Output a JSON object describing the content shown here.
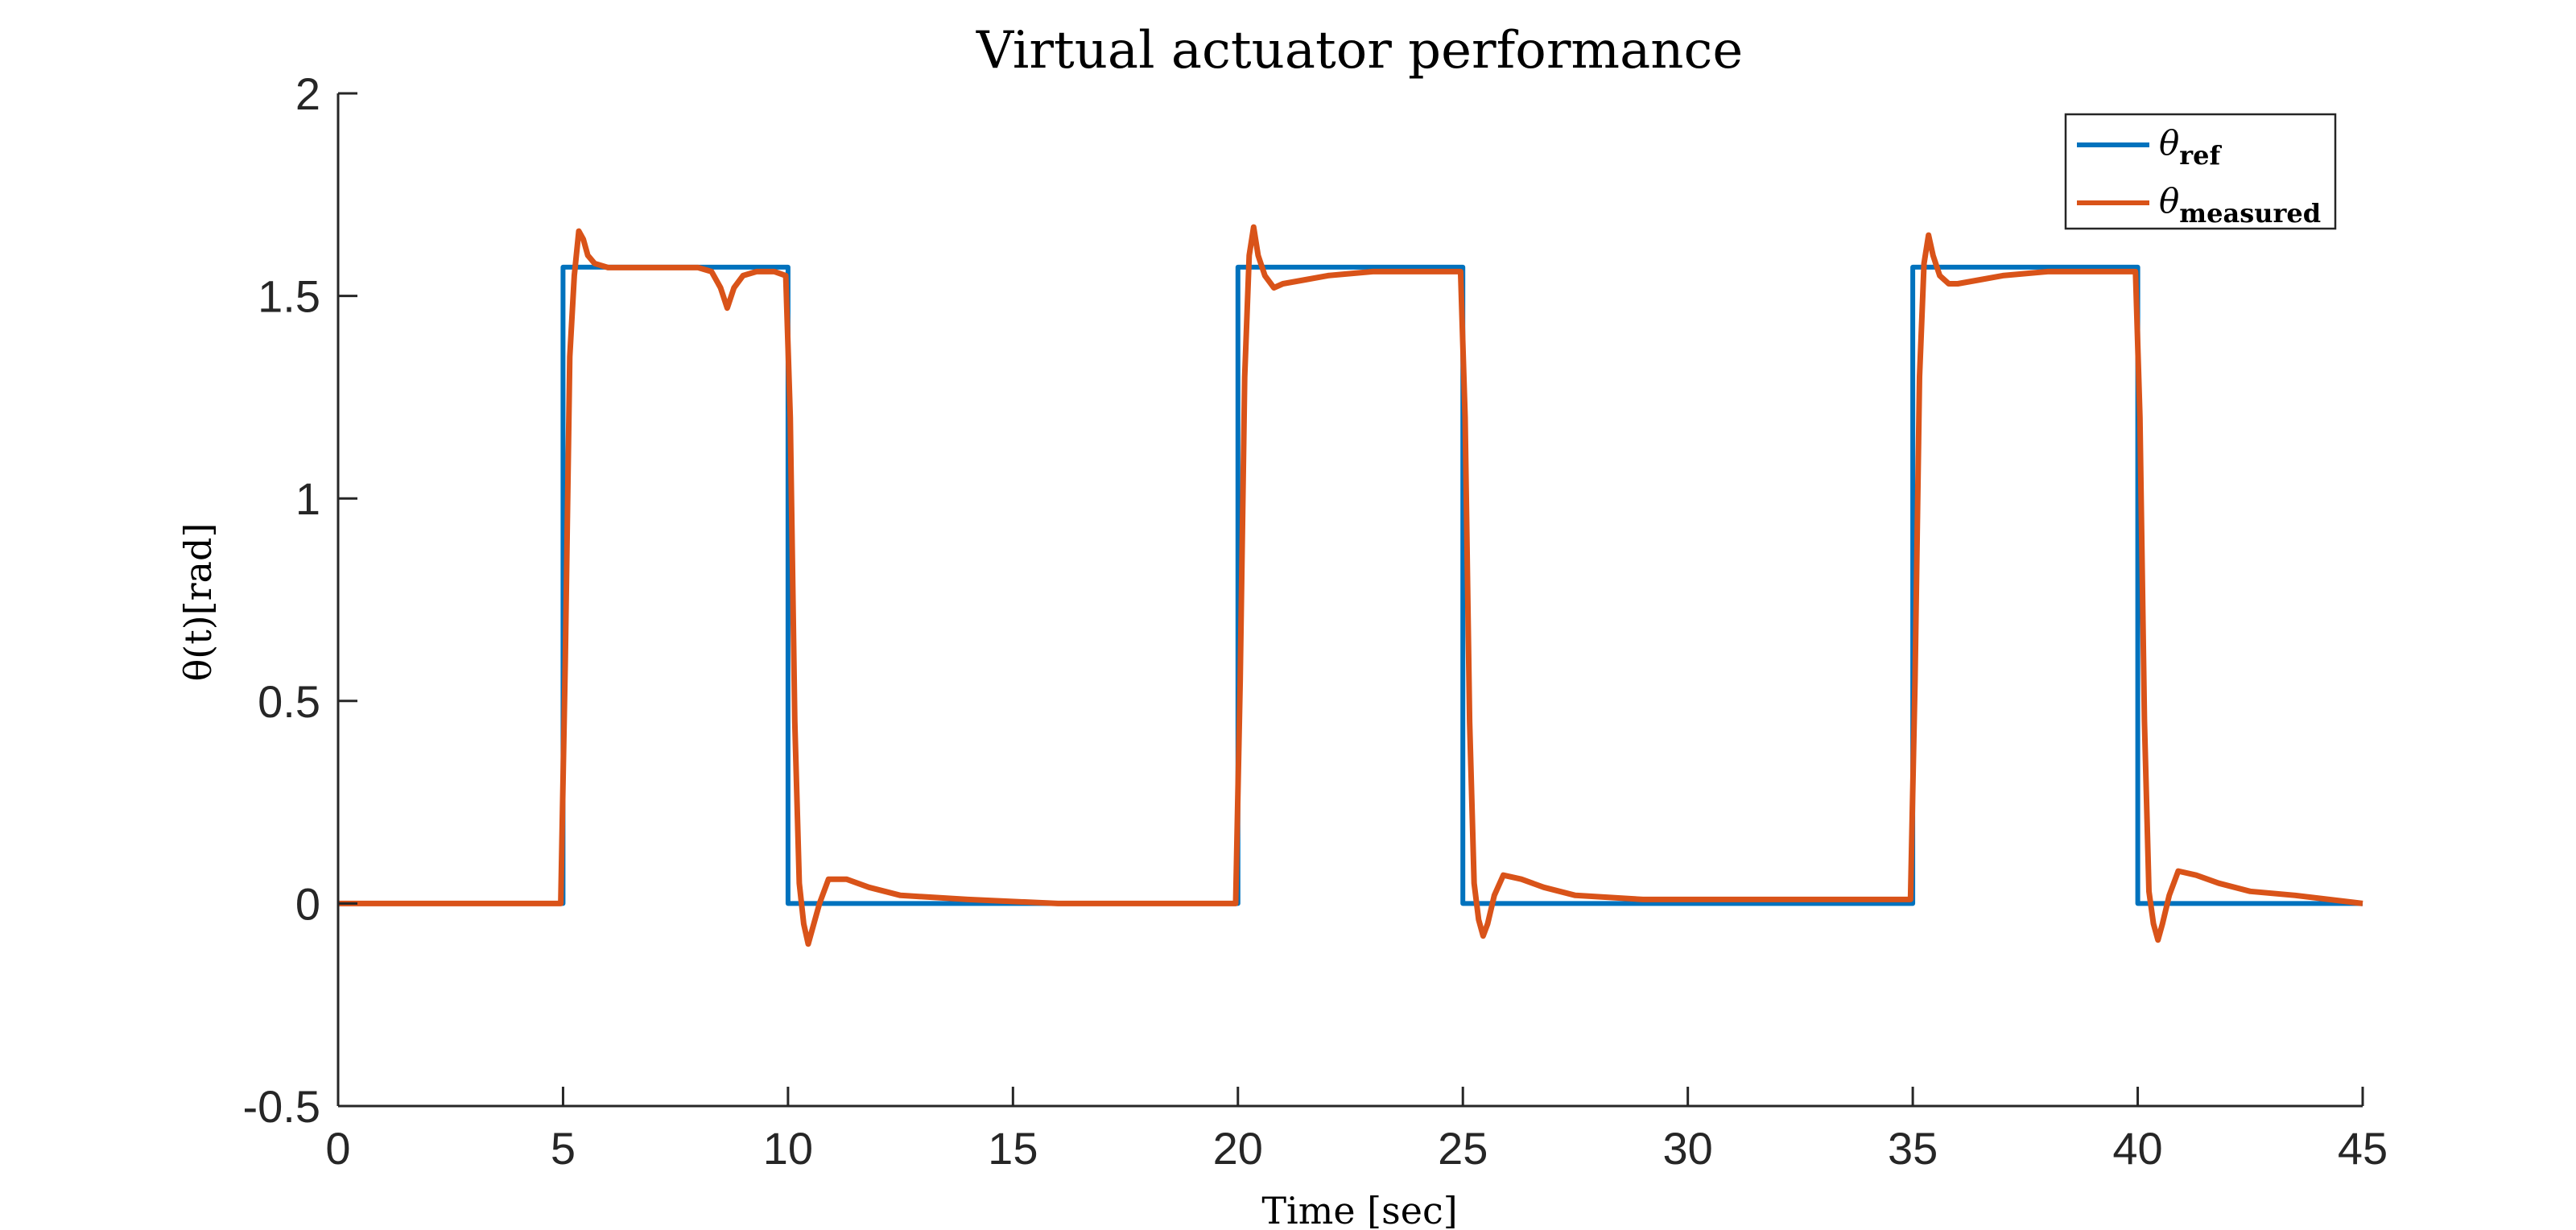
{
  "chart_data": {
    "type": "line",
    "title": "Virtual actuator performance",
    "xlabel": "Time [sec]",
    "ylabel": "θ(t)[rad]",
    "xlim": [
      0,
      45
    ],
    "ylim": [
      -0.5,
      2
    ],
    "xticks": [
      0,
      5,
      10,
      15,
      20,
      25,
      30,
      35,
      40,
      45
    ],
    "yticks": [
      -0.5,
      0,
      0.5,
      1,
      1.5,
      2
    ],
    "ytick_labels": [
      "-0.5",
      "0",
      "0.5",
      "1",
      "1.5",
      "2"
    ],
    "grid": false,
    "legend_position": "top-right",
    "series": [
      {
        "name": "θ_ref",
        "legend_symbol": "θ",
        "legend_sub": "ref",
        "color": "#0072BD",
        "x": [
          0,
          5,
          5,
          10,
          10,
          20,
          20,
          25,
          25,
          35,
          35,
          40,
          40,
          45
        ],
        "y": [
          0,
          0,
          1.571,
          1.571,
          0,
          0,
          1.571,
          1.571,
          0,
          0,
          1.571,
          1.571,
          0,
          0
        ]
      },
      {
        "name": "θ_measured",
        "legend_symbol": "θ",
        "legend_sub": "measured",
        "color": "#D95319",
        "x": [
          0,
          4.95,
          5.05,
          5.15,
          5.25,
          5.35,
          5.45,
          5.55,
          5.7,
          6.0,
          6.5,
          7.0,
          7.5,
          8.0,
          8.3,
          8.5,
          8.65,
          8.8,
          9.0,
          9.3,
          9.7,
          9.95,
          10.05,
          10.15,
          10.25,
          10.35,
          10.45,
          10.55,
          10.7,
          10.9,
          11.3,
          11.8,
          12.5,
          14,
          16,
          18,
          19.95,
          20.05,
          20.15,
          20.25,
          20.35,
          20.45,
          20.6,
          20.8,
          21.0,
          21.5,
          22,
          23,
          24,
          24.95,
          25.05,
          25.15,
          25.25,
          25.35,
          25.45,
          25.55,
          25.7,
          25.9,
          26.3,
          26.8,
          27.5,
          29,
          31,
          33,
          34.95,
          35.05,
          35.15,
          35.25,
          35.35,
          35.45,
          35.6,
          35.8,
          36.0,
          36.5,
          37,
          38,
          39,
          39.95,
          40.05,
          40.15,
          40.25,
          40.35,
          40.45,
          40.55,
          40.7,
          40.9,
          41.3,
          41.8,
          42.5,
          43.5,
          45
        ],
        "y": [
          0.0,
          0.0,
          0.6,
          1.35,
          1.55,
          1.66,
          1.64,
          1.6,
          1.58,
          1.57,
          1.57,
          1.57,
          1.57,
          1.57,
          1.56,
          1.52,
          1.47,
          1.52,
          1.55,
          1.56,
          1.56,
          1.55,
          1.2,
          0.45,
          0.05,
          -0.05,
          -0.1,
          -0.06,
          0.0,
          0.06,
          0.06,
          0.04,
          0.02,
          0.01,
          0.0,
          0.0,
          0.0,
          0.55,
          1.3,
          1.6,
          1.67,
          1.6,
          1.55,
          1.52,
          1.53,
          1.54,
          1.55,
          1.56,
          1.56,
          1.56,
          1.2,
          0.45,
          0.05,
          -0.04,
          -0.08,
          -0.05,
          0.02,
          0.07,
          0.06,
          0.04,
          0.02,
          0.01,
          0.01,
          0.01,
          0.01,
          0.55,
          1.3,
          1.58,
          1.65,
          1.6,
          1.55,
          1.53,
          1.53,
          1.54,
          1.55,
          1.56,
          1.56,
          1.56,
          1.2,
          0.45,
          0.03,
          -0.05,
          -0.09,
          -0.05,
          0.02,
          0.08,
          0.07,
          0.05,
          0.03,
          0.02,
          0.0
        ]
      }
    ]
  }
}
